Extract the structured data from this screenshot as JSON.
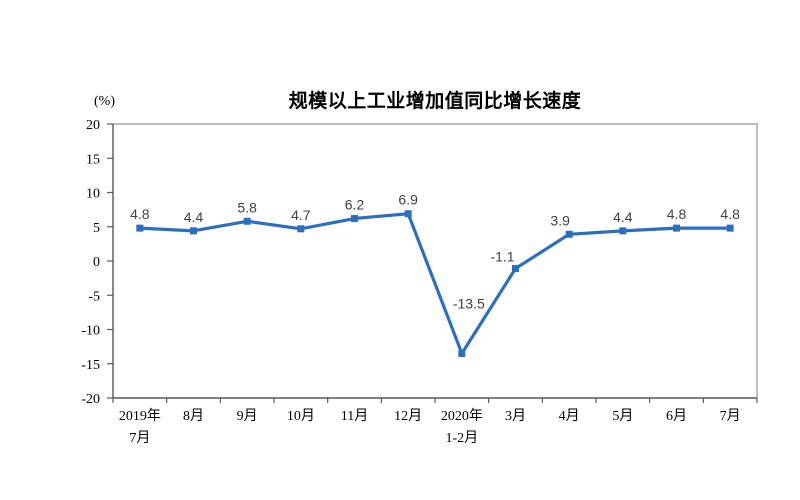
{
  "chart_data": {
    "type": "line",
    "title": "规模以上工业增加值同比增长速度",
    "ylabel": "(%)",
    "xlabel": "",
    "categories": [
      [
        "2019年",
        "7月"
      ],
      "8月",
      "9月",
      "10月",
      "11月",
      "12月",
      [
        "2020年",
        "1-2月"
      ],
      "3月",
      "4月",
      "5月",
      "6月",
      "7月"
    ],
    "series": [
      {
        "name": "规模以上工业增加值同比增长速度",
        "values": [
          4.8,
          4.4,
          5.8,
          4.7,
          6.2,
          6.9,
          -13.5,
          -1.1,
          3.9,
          4.4,
          4.8,
          4.8
        ]
      }
    ],
    "data_labels": [
      "4.8",
      "4.4",
      "5.8",
      "4.7",
      "6.2",
      "6.9",
      "-13.5",
      "-1.1",
      "3.9",
      "4.4",
      "4.8",
      "4.8"
    ],
    "ylim": [
      -20,
      20
    ],
    "yticks": [
      20,
      15,
      10,
      5,
      0,
      -5,
      -10,
      -15,
      -20
    ],
    "grid": false,
    "legend": "none",
    "marker": "square",
    "line_color": "#2d6fbe",
    "marker_color": "#2d6fbe",
    "axis_color": "#595959",
    "frame_color": "#a6a6a6",
    "label_color": "#404040",
    "label_offsets": {
      "6": [
        7,
        -50
      ],
      "7": [
        -13,
        -12
      ],
      "8": [
        -9,
        -14
      ]
    }
  }
}
